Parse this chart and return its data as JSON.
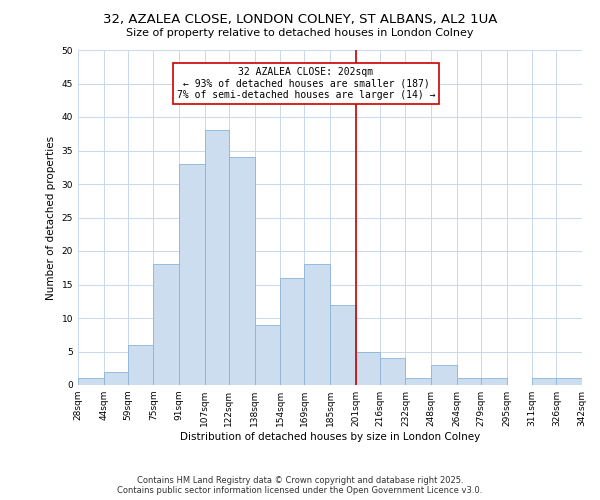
{
  "title": "32, AZALEA CLOSE, LONDON COLNEY, ST ALBANS, AL2 1UA",
  "subtitle": "Size of property relative to detached houses in London Colney",
  "xlabel": "Distribution of detached houses by size in London Colney",
  "ylabel": "Number of detached properties",
  "bar_color": "#ccddf0",
  "bar_edge_color": "#8ab4d8",
  "grid_color": "#c8d8ee",
  "vline_x": 201,
  "vline_color": "#cc0000",
  "annotation_title": "32 AZALEA CLOSE: 202sqm",
  "annotation_line1": "← 93% of detached houses are smaller (187)",
  "annotation_line2": "7% of semi-detached houses are larger (14) →",
  "annotation_box_color": "#ffffff",
  "annotation_box_edge": "#cc0000",
  "bin_edges": [
    28,
    44,
    59,
    75,
    91,
    107,
    122,
    138,
    154,
    169,
    185,
    201,
    216,
    232,
    248,
    264,
    279,
    295,
    311,
    326,
    342
  ],
  "bin_heights": [
    1,
    2,
    6,
    18,
    33,
    38,
    34,
    9,
    16,
    18,
    12,
    5,
    4,
    1,
    3,
    1,
    1,
    0,
    1,
    1
  ],
  "tick_labels": [
    "28sqm",
    "44sqm",
    "59sqm",
    "75sqm",
    "91sqm",
    "107sqm",
    "122sqm",
    "138sqm",
    "154sqm",
    "169sqm",
    "185sqm",
    "201sqm",
    "216sqm",
    "232sqm",
    "248sqm",
    "264sqm",
    "279sqm",
    "295sqm",
    "311sqm",
    "326sqm",
    "342sqm"
  ],
  "ylim": [
    0,
    50
  ],
  "yticks": [
    0,
    5,
    10,
    15,
    20,
    25,
    30,
    35,
    40,
    45,
    50
  ],
  "footer_line1": "Contains HM Land Registry data © Crown copyright and database right 2025.",
  "footer_line2": "Contains public sector information licensed under the Open Government Licence v3.0.",
  "background_color": "#ffffff",
  "title_fontsize": 9.5,
  "subtitle_fontsize": 8,
  "axis_label_fontsize": 7.5,
  "tick_fontsize": 6.5,
  "annotation_fontsize": 7,
  "footer_fontsize": 6
}
